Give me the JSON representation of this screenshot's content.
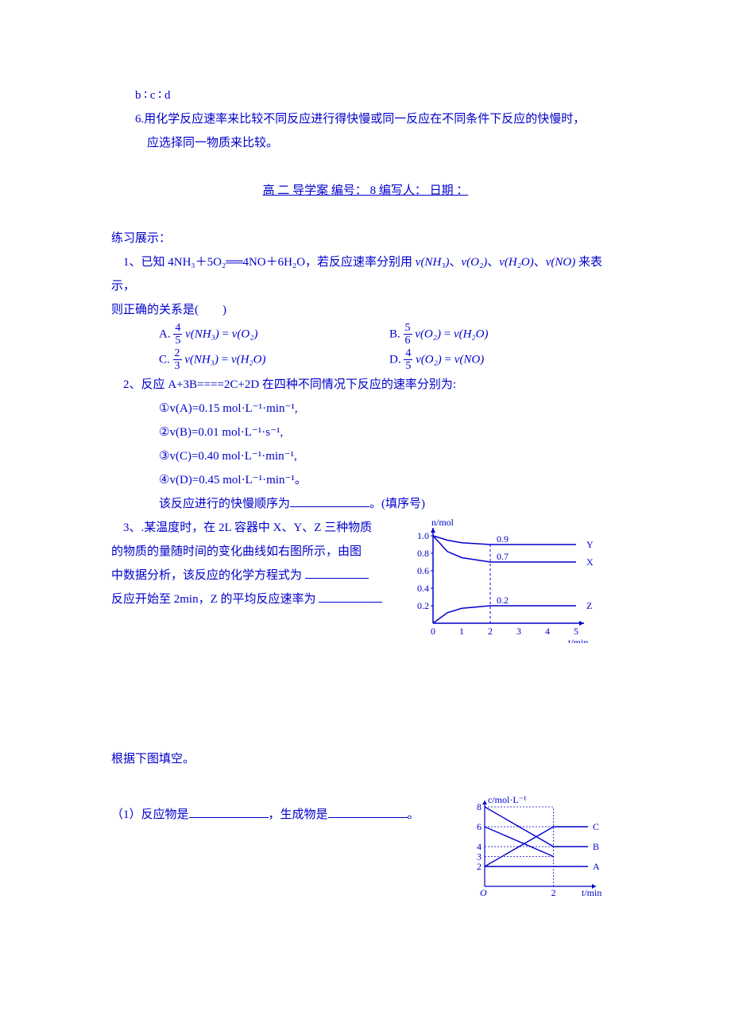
{
  "font_color": "#0000cc",
  "page_bg": "#ffffff",
  "line1": "b ∶ c ∶ d",
  "line2": "6.用化学反应速率来比较不同反应进行得快慢或同一反应在不同条件下反应的快慢时，",
  "line3": "应选择同一物质来比较。",
  "header": {
    "text": "高 二 导学案        编号：   8     编写人：        日期 ：        "
  },
  "section_title": "练习展示：",
  "q1": {
    "stem_head": "1、已知 4NH₃＋5O₂══4NO＋6H₂O，若反应速率分别用 ",
    "v1": "v(NH₃)",
    "v2": "v(O₂)",
    "v3": "v(H₂O)",
    "v4": "v(NO)",
    "stem_tail": " 来表示，",
    "stem_line2": "则正确的关系是(　　)",
    "opts": {
      "A": {
        "label": "A.",
        "num": "4",
        "den": "5",
        "left": "v(NH₃)",
        "right": "v(O₂)"
      },
      "B": {
        "label": "B.",
        "num": "5",
        "den": "6",
        "left": "v(O₂)",
        "right": "v(H₂O)"
      },
      "C": {
        "label": "C.",
        "num": "2",
        "den": "3",
        "left": "v(NH₃)",
        "right": "v(H₂O)"
      },
      "D": {
        "label": "D.",
        "num": "4",
        "den": "5",
        "left": "v(O₂)",
        "right": "v(NO)"
      }
    }
  },
  "q2": {
    "stem": "2、反应 A+3B====2C+2D 在四种不同情况下反应的速率分别为:",
    "items": [
      "①v(A)=0.15 mol·L⁻¹·min⁻¹,",
      "②v(B)=0.01 mol·L⁻¹·s⁻¹,",
      "③v(C)=0.40 mol·L⁻¹·min⁻¹,",
      "④v(D)=0.45 mol·L⁻¹·min⁻¹。"
    ],
    "conclude": "该反应进行的快慢顺序为",
    "conclude_tail": "。(填序号)"
  },
  "q3": {
    "l1": "3、.某温度时，在 2L 容器中 X、Y、Z 三种物质",
    "l2": "的物质的量随时间的变化曲线如右图所示，由图",
    "l3": "中数据分析，该反应的化学方程式为 ",
    "l4": "反应开始至 2min，Z 的平均反应速率为 ",
    "chart": {
      "type": "line",
      "y_label": "n/mol",
      "x_label": "t/min",
      "x_ticks": [
        0,
        1,
        2,
        3,
        4,
        5
      ],
      "y_ticks": [
        0.2,
        0.4,
        0.6,
        0.8,
        1.0
      ],
      "series": {
        "Y": {
          "label": "Y",
          "label_val": "0.9",
          "color": "#0000cc",
          "points": [
            [
              0,
              1.0
            ],
            [
              0.5,
              0.95
            ],
            [
              1,
              0.92
            ],
            [
              2,
              0.9
            ],
            [
              5,
              0.9
            ]
          ]
        },
        "X": {
          "label": "X",
          "label_val": "0.7",
          "color": "#0000cc",
          "points": [
            [
              0,
              1.0
            ],
            [
              0.5,
              0.82
            ],
            [
              1,
              0.75
            ],
            [
              2,
              0.7
            ],
            [
              5,
              0.7
            ]
          ]
        },
        "Z": {
          "label": "Z",
          "label_val": "0.2",
          "color": "#0000cc",
          "points": [
            [
              0,
              0.0
            ],
            [
              0.5,
              0.12
            ],
            [
              1,
              0.17
            ],
            [
              2,
              0.2
            ],
            [
              5,
              0.2
            ]
          ]
        }
      },
      "dashed_x": 2
    }
  },
  "bottom_text": "根据下图填空。",
  "q4": {
    "stem_head": "（1）反应物是",
    "stem_mid": "，生成物是",
    "stem_tail": "。",
    "chart": {
      "type": "line",
      "y_label": "c/mol·L⁻¹",
      "x_label": "t/min",
      "x_ticks": [
        0,
        2
      ],
      "y_ticks": [
        2,
        3,
        4,
        6,
        8
      ],
      "dashed_x": 2,
      "series": {
        "A": {
          "label": "A",
          "points": [
            [
              0,
              2
            ],
            [
              2,
              2
            ],
            [
              3,
              2
            ]
          ]
        },
        "B": {
          "label": "B",
          "points": [
            [
              0,
              8
            ],
            [
              2,
              4
            ],
            [
              3,
              4
            ]
          ]
        },
        "C": {
          "label": "C",
          "points": [
            [
              0,
              2
            ],
            [
              2,
              6
            ],
            [
              3,
              6
            ]
          ]
        },
        "D": {
          "points": [
            [
              0,
              6
            ],
            [
              2,
              3
            ]
          ]
        }
      }
    }
  }
}
